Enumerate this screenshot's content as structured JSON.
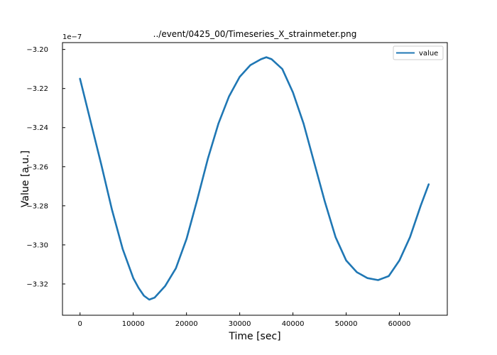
{
  "chart_data": {
    "type": "line",
    "title": "../event/0425_00/Timeseries_X_strainmeter.png",
    "xlabel": "Time [sec]",
    "ylabel": "Value [a.u.]",
    "y_offset_label": "1e−7",
    "y_scale": 1e-07,
    "xlim": [
      -3300,
      69000
    ],
    "ylim": [
      -3.336e-07,
      -3.1965e-07
    ],
    "xticks": [
      0,
      10000,
      20000,
      30000,
      40000,
      50000,
      60000
    ],
    "xtick_labels": [
      "0",
      "10000",
      "20000",
      "30000",
      "40000",
      "50000",
      "60000"
    ],
    "yticks": [
      -3.2e-07,
      -3.22e-07,
      -3.24e-07,
      -3.26e-07,
      -3.28e-07,
      -3.3e-07,
      -3.32e-07
    ],
    "ytick_labels": [
      "−3.20",
      "−3.22",
      "−3.24",
      "−3.26",
      "−3.28",
      "−3.30",
      "−3.32"
    ],
    "grid": false,
    "legend_position": "top-right",
    "series": [
      {
        "name": "value",
        "color": "#1f77b4",
        "x": [
          0,
          2000,
          4000,
          6000,
          8000,
          10000,
          11000,
          12000,
          13000,
          14000,
          16000,
          18000,
          20000,
          22000,
          24000,
          26000,
          28000,
          30000,
          32000,
          34000,
          35000,
          36000,
          38000,
          40000,
          42000,
          44000,
          46000,
          48000,
          50000,
          52000,
          54000,
          56000,
          57000,
          58000,
          60000,
          62000,
          64000,
          65500
        ],
        "values": [
          -3.215e-07,
          -3.237e-07,
          -3.259e-07,
          -3.282e-07,
          -3.302e-07,
          -3.317e-07,
          -3.322e-07,
          -3.326e-07,
          -3.328e-07,
          -3.327e-07,
          -3.321e-07,
          -3.312e-07,
          -3.297e-07,
          -3.277e-07,
          -3.256e-07,
          -3.238e-07,
          -3.224e-07,
          -3.214e-07,
          -3.208e-07,
          -3.205e-07,
          -3.204e-07,
          -3.205e-07,
          -3.21e-07,
          -3.222e-07,
          -3.238e-07,
          -3.258e-07,
          -3.278e-07,
          -3.296e-07,
          -3.308e-07,
          -3.314e-07,
          -3.317e-07,
          -3.318e-07,
          -3.317e-07,
          -3.316e-07,
          -3.308e-07,
          -3.296e-07,
          -3.28e-07,
          -3.269e-07
        ]
      }
    ]
  }
}
